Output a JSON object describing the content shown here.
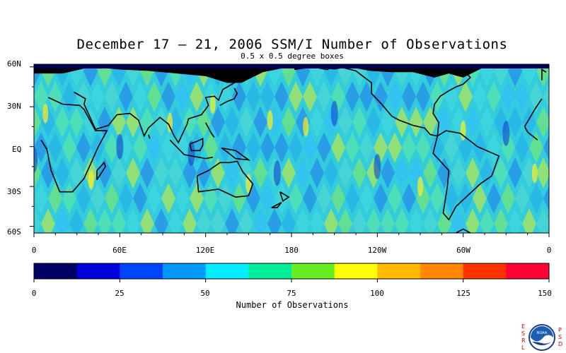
{
  "title": "December 17 – 21, 2006 SSM/I Number of Observations",
  "subtitle": "0.5 x 0.5 degree boxes",
  "lat_ticks": [
    "60N",
    "30N",
    "EQ",
    "30S",
    "60S"
  ],
  "lon_ticks": [
    "0",
    "60E",
    "120E",
    "180",
    "120W",
    "60W",
    "0"
  ],
  "colorbar": {
    "label": "Number of Observations",
    "ticks": [
      "0",
      "25",
      "50",
      "75",
      "100",
      "125",
      "150"
    ],
    "colors": [
      "#000066",
      "#0000dd",
      "#0044ff",
      "#0099ff",
      "#00eeff",
      "#00ee99",
      "#66ee22",
      "#ffff00",
      "#ffbb00",
      "#ff8800",
      "#ff3300",
      "#ff0033"
    ]
  },
  "logo": {
    "left_letters": [
      "E",
      "S",
      "R",
      "L"
    ],
    "right_letters": [
      "P",
      "S",
      "D"
    ],
    "center_text": "NOAA"
  },
  "colors": {
    "land": "#000000",
    "frame": "#000000"
  }
}
